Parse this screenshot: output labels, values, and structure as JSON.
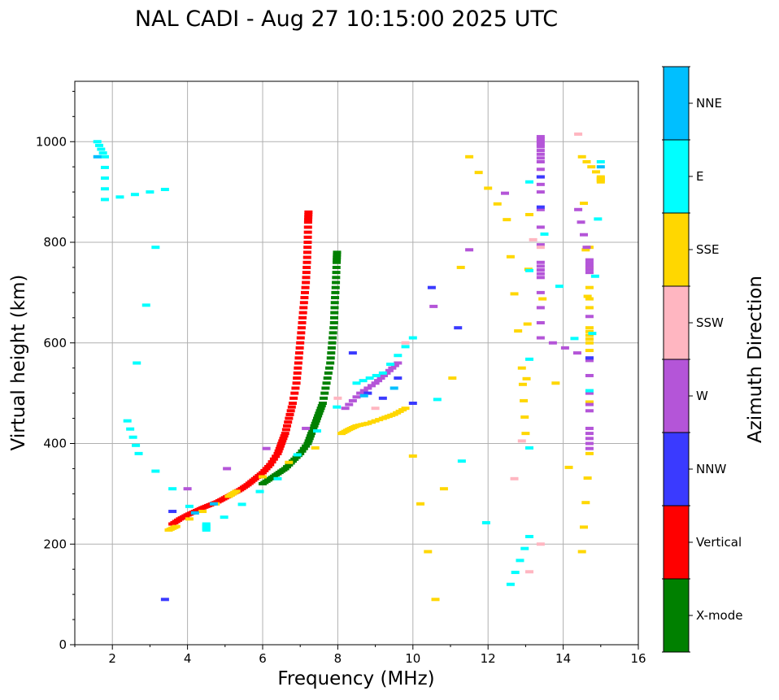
{
  "chart_data": {
    "type": "scatter",
    "title": "NAL CADI - Aug 27 10:15:00 2025 UTC",
    "xlabel": "Frequency (MHz)",
    "ylabel": "Virtual height (km)",
    "xlim": [
      1,
      16
    ],
    "ylim": [
      0,
      1120
    ],
    "xticks": [
      2,
      4,
      6,
      8,
      10,
      12,
      14,
      16
    ],
    "yticks": [
      0,
      200,
      400,
      600,
      800,
      1000
    ],
    "grid": true,
    "colorbar": {
      "label": "Azimuth Direction",
      "categories": [
        {
          "name": "X-mode",
          "color": "#008000"
        },
        {
          "name": "Vertical",
          "color": "#ff0000"
        },
        {
          "name": "NNW",
          "color": "#3a3aff"
        },
        {
          "name": "W",
          "color": "#b455d8"
        },
        {
          "name": "SSW",
          "color": "#ffb6c1"
        },
        {
          "name": "SSE",
          "color": "#ffd700"
        },
        {
          "name": "E",
          "color": "#00ffff"
        },
        {
          "name": "NNE",
          "color": "#00bfff"
        }
      ]
    },
    "series": [
      {
        "name": "Vertical (O-mode trace)",
        "color": "#ff0000",
        "points": [
          [
            3.6,
            240
          ],
          [
            3.8,
            250
          ],
          [
            4.0,
            258
          ],
          [
            4.2,
            265
          ],
          [
            4.4,
            272
          ],
          [
            4.6,
            278
          ],
          [
            4.8,
            284
          ],
          [
            5.0,
            292
          ],
          [
            5.2,
            300
          ],
          [
            5.4,
            308
          ],
          [
            5.6,
            318
          ],
          [
            5.8,
            330
          ],
          [
            6.0,
            342
          ],
          [
            6.2,
            358
          ],
          [
            6.4,
            380
          ],
          [
            6.5,
            400
          ],
          [
            6.6,
            420
          ],
          [
            6.7,
            450
          ],
          [
            6.8,
            480
          ],
          [
            6.9,
            520
          ],
          [
            6.95,
            560
          ],
          [
            7.0,
            600
          ],
          [
            7.05,
            640
          ],
          [
            7.1,
            680
          ],
          [
            7.15,
            720
          ],
          [
            7.18,
            760
          ],
          [
            7.2,
            800
          ],
          [
            7.21,
            840
          ],
          [
            7.22,
            860
          ]
        ]
      },
      {
        "name": "X-mode trace",
        "color": "#008000",
        "points": [
          [
            6.0,
            320
          ],
          [
            6.2,
            330
          ],
          [
            6.4,
            340
          ],
          [
            6.6,
            350
          ],
          [
            6.8,
            365
          ],
          [
            7.0,
            380
          ],
          [
            7.2,
            400
          ],
          [
            7.3,
            420
          ],
          [
            7.4,
            440
          ],
          [
            7.5,
            460
          ],
          [
            7.6,
            480
          ],
          [
            7.7,
            520
          ],
          [
            7.8,
            560
          ],
          [
            7.85,
            600
          ],
          [
            7.9,
            640
          ],
          [
            7.92,
            680
          ],
          [
            7.95,
            720
          ],
          [
            7.97,
            760
          ],
          [
            7.98,
            780
          ]
        ]
      },
      {
        "name": "SSE",
        "color": "#ffd700",
        "points": [
          [
            3.5,
            228
          ],
          [
            3.7,
            235
          ],
          [
            5.1,
            295
          ],
          [
            5.3,
            305
          ],
          [
            8.1,
            420
          ],
          [
            8.3,
            428
          ],
          [
            8.5,
            435
          ],
          [
            8.8,
            440
          ],
          [
            9.2,
            450
          ],
          [
            9.5,
            458
          ],
          [
            9.8,
            470
          ],
          [
            10.6,
            90
          ],
          [
            11.5,
            970
          ],
          [
            12.5,
            845
          ],
          [
            12.9,
            550
          ],
          [
            13.0,
            420
          ],
          [
            13.1,
            855
          ],
          [
            14.5,
            185
          ],
          [
            14.7,
            380
          ],
          [
            14.7,
            790
          ],
          [
            14.7,
            630
          ],
          [
            14.7,
            600
          ],
          [
            14.5,
            970
          ],
          [
            15.0,
            930
          ],
          [
            15.0,
            920
          ]
        ]
      },
      {
        "name": "W",
        "color": "#b455d8",
        "points": [
          [
            4.0,
            310
          ],
          [
            8.2,
            470
          ],
          [
            8.6,
            500
          ],
          [
            9.0,
            520
          ],
          [
            9.3,
            540
          ],
          [
            9.6,
            560
          ],
          [
            13.4,
            1010
          ],
          [
            13.4,
            990
          ],
          [
            13.4,
            960
          ],
          [
            13.4,
            900
          ],
          [
            13.4,
            760
          ],
          [
            13.4,
            730
          ],
          [
            13.4,
            610
          ],
          [
            14.7,
            570
          ],
          [
            14.7,
            430
          ],
          [
            14.7,
            390
          ],
          [
            14.7,
            740
          ],
          [
            14.7,
            765
          ],
          [
            14.4,
            865
          ]
        ]
      },
      {
        "name": "NNW",
        "color": "#3a3aff",
        "points": [
          [
            3.6,
            265
          ],
          [
            8.4,
            580
          ],
          [
            8.8,
            500
          ],
          [
            9.2,
            490
          ],
          [
            9.6,
            530
          ],
          [
            10.0,
            480
          ],
          [
            10.5,
            710
          ],
          [
            11.2,
            630
          ],
          [
            13.4,
            930
          ],
          [
            13.4,
            870
          ],
          [
            14.7,
            570
          ],
          [
            3.4,
            90
          ]
        ]
      },
      {
        "name": "SSW",
        "color": "#ffb6c1",
        "points": [
          [
            8.0,
            490
          ],
          [
            9.0,
            470
          ],
          [
            9.8,
            600
          ],
          [
            12.7,
            330
          ],
          [
            12.9,
            405
          ],
          [
            13.1,
            145
          ],
          [
            13.2,
            805
          ],
          [
            13.4,
            790
          ],
          [
            13.4,
            200
          ],
          [
            14.4,
            1015
          ]
        ]
      },
      {
        "name": "E",
        "color": "#00ffff",
        "points": [
          [
            1.6,
            1000
          ],
          [
            1.8,
            970
          ],
          [
            1.8,
            885
          ],
          [
            3.4,
            905
          ],
          [
            2.4,
            445
          ],
          [
            2.7,
            380
          ],
          [
            4.5,
            240
          ],
          [
            4.5,
            228
          ],
          [
            6.4,
            330
          ],
          [
            8.5,
            520
          ],
          [
            9.2,
            540
          ],
          [
            10.0,
            610
          ],
          [
            12.6,
            120
          ],
          [
            13.1,
            215
          ],
          [
            13.1,
            920
          ],
          [
            14.7,
            505
          ],
          [
            15.0,
            960
          ]
        ]
      },
      {
        "name": "NNE",
        "color": "#00bfff",
        "points": [
          [
            1.6,
            970
          ],
          [
            4.2,
            262
          ],
          [
            4.7,
            280
          ],
          [
            8.7,
            495
          ],
          [
            9.5,
            510
          ],
          [
            15.0,
            950
          ]
        ]
      }
    ]
  }
}
